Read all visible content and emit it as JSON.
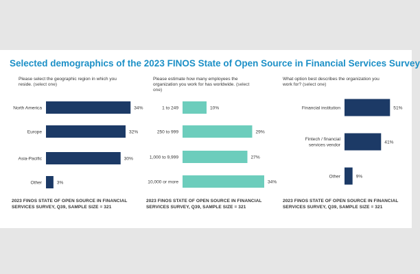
{
  "page": {
    "title": "Selected demographics of the 2023 FINOS State of Open Source in Financial Services Survey"
  },
  "colors": {
    "title": "#1b8fc6",
    "navy": "#1c3a66",
    "teal": "#6ccdbc"
  },
  "chart_data": [
    {
      "type": "bar",
      "orientation": "horizontal",
      "question": "Please select the geographic region in which you reside.",
      "question_note": "(select one)",
      "categories": [
        "North America",
        "Europe",
        "Asia-Pacific",
        "Other"
      ],
      "values": [
        34,
        32,
        30,
        3
      ],
      "value_labels": [
        "34%",
        "32%",
        "30%",
        "3%"
      ],
      "xlim": [
        0,
        40
      ],
      "color": "#1c3a66",
      "source": "2023 FINOS STATE OF OPEN SOURCE IN FINANCIAL SERVICES SURVEY, Q39, SAMPLE SIZE = 321"
    },
    {
      "type": "bar",
      "orientation": "horizontal",
      "question": "Please estimate how many employees the organization you work for has worldwide.",
      "question_note": "(select one)",
      "categories": [
        "1 to 249",
        "250 to 999",
        "1,000 to 9,999",
        "10,000 or more"
      ],
      "values": [
        10,
        29,
        27,
        34
      ],
      "value_labels": [
        "10%",
        "29%",
        "27%",
        "34%"
      ],
      "xlim": [
        0,
        40
      ],
      "color": "#6ccdbc",
      "source": "2023 FINOS STATE OF OPEN SOURCE IN FINANCIAL SERVICES SURVEY, Q39, SAMPLE SIZE = 321"
    },
    {
      "type": "bar",
      "orientation": "horizontal",
      "question": "What option best describes the organization you work for?",
      "question_note": "(select one)",
      "categories": [
        "Financial institution",
        "Fintech / financial services vendor",
        "Other"
      ],
      "values": [
        51,
        41,
        9
      ],
      "value_labels": [
        "51%",
        "41%",
        "9%"
      ],
      "xlim": [
        0,
        60
      ],
      "color": "#1c3a66",
      "source": "2023 FINOS STATE OF OPEN SOURCE IN FINANCIAL SERVICES SURVEY, Q39, SAMPLE SIZE = 321"
    }
  ]
}
